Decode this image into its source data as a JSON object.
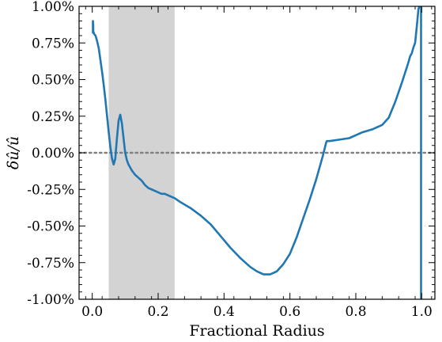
{
  "chart_data": {
    "type": "line",
    "title": "",
    "xlabel": "Fractional Radius",
    "ylabel": "δû/û",
    "xlim": [
      -0.04,
      1.04
    ],
    "ylim": [
      -1.0,
      1.0
    ],
    "x_ticks": [
      0.0,
      0.2,
      0.4,
      0.6,
      0.8,
      1.0
    ],
    "x_tick_labels": [
      "0.0",
      "0.2",
      "0.4",
      "0.6",
      "0.8",
      "1.0"
    ],
    "y_ticks": [
      1.0,
      0.75,
      0.5,
      0.25,
      0.0,
      -0.25,
      -0.5,
      -0.75,
      -1.0
    ],
    "y_tick_labels": [
      "1.00%",
      "0.75%",
      "0.50%",
      "0.25%",
      "0.00%",
      "-0.25%",
      "-0.50%",
      "-0.75%",
      "-1.00%"
    ],
    "grid": false,
    "legend": "none",
    "reference_line": {
      "y": 0.0,
      "style": "dotted",
      "color": "#808080"
    },
    "shaded_region": {
      "x": [
        0.05,
        0.25
      ],
      "color": "#d3d3d3"
    },
    "series": [
      {
        "color": "#1f77b4",
        "x": [
          0.002,
          0.002,
          0.003,
          0.003,
          0.006,
          0.01,
          0.015,
          0.02,
          0.025,
          0.03,
          0.035,
          0.04,
          0.045,
          0.05,
          0.055,
          0.06,
          0.065,
          0.07,
          0.072,
          0.075,
          0.08,
          0.085,
          0.09,
          0.093,
          0.097,
          0.1,
          0.105,
          0.11,
          0.115,
          0.12,
          0.13,
          0.14,
          0.15,
          0.16,
          0.17,
          0.18,
          0.19,
          0.2,
          0.21,
          0.22,
          0.23,
          0.25,
          0.27,
          0.3,
          0.33,
          0.36,
          0.39,
          0.42,
          0.45,
          0.48,
          0.5,
          0.52,
          0.54,
          0.56,
          0.58,
          0.6,
          0.62,
          0.64,
          0.66,
          0.68,
          0.7,
          0.71,
          0.712,
          0.72,
          0.75,
          0.78,
          0.8,
          0.82,
          0.85,
          0.88,
          0.9,
          0.92,
          0.94,
          0.95,
          0.96,
          0.965,
          0.97,
          0.975,
          0.98,
          0.985,
          0.99,
          0.993,
          0.996,
          0.998
        ],
        "y": [
          0.82,
          0.9,
          0.87,
          0.83,
          0.81,
          0.8,
          0.76,
          0.71,
          0.63,
          0.55,
          0.46,
          0.36,
          0.25,
          0.14,
          0.04,
          -0.04,
          -0.08,
          -0.04,
          0.02,
          0.1,
          0.22,
          0.26,
          0.2,
          0.14,
          0.06,
          0.0,
          -0.05,
          -0.08,
          -0.1,
          -0.12,
          -0.15,
          -0.17,
          -0.19,
          -0.22,
          -0.24,
          -0.25,
          -0.26,
          -0.27,
          -0.28,
          -0.28,
          -0.29,
          -0.31,
          -0.34,
          -0.38,
          -0.43,
          -0.49,
          -0.57,
          -0.65,
          -0.72,
          -0.78,
          -0.81,
          -0.83,
          -0.83,
          -0.81,
          -0.76,
          -0.69,
          -0.58,
          -0.45,
          -0.32,
          -0.18,
          -0.02,
          0.07,
          0.08,
          0.08,
          0.09,
          0.1,
          0.12,
          0.14,
          0.16,
          0.19,
          0.24,
          0.35,
          0.48,
          0.55,
          0.62,
          0.66,
          0.68,
          0.72,
          0.75,
          0.86,
          0.98,
          1.0,
          1.0,
          1.0
        ]
      },
      {
        "color": "#1f77b4",
        "x": [
          0.998,
          0.998
        ],
        "y": [
          1.0,
          -1.0
        ]
      }
    ]
  }
}
